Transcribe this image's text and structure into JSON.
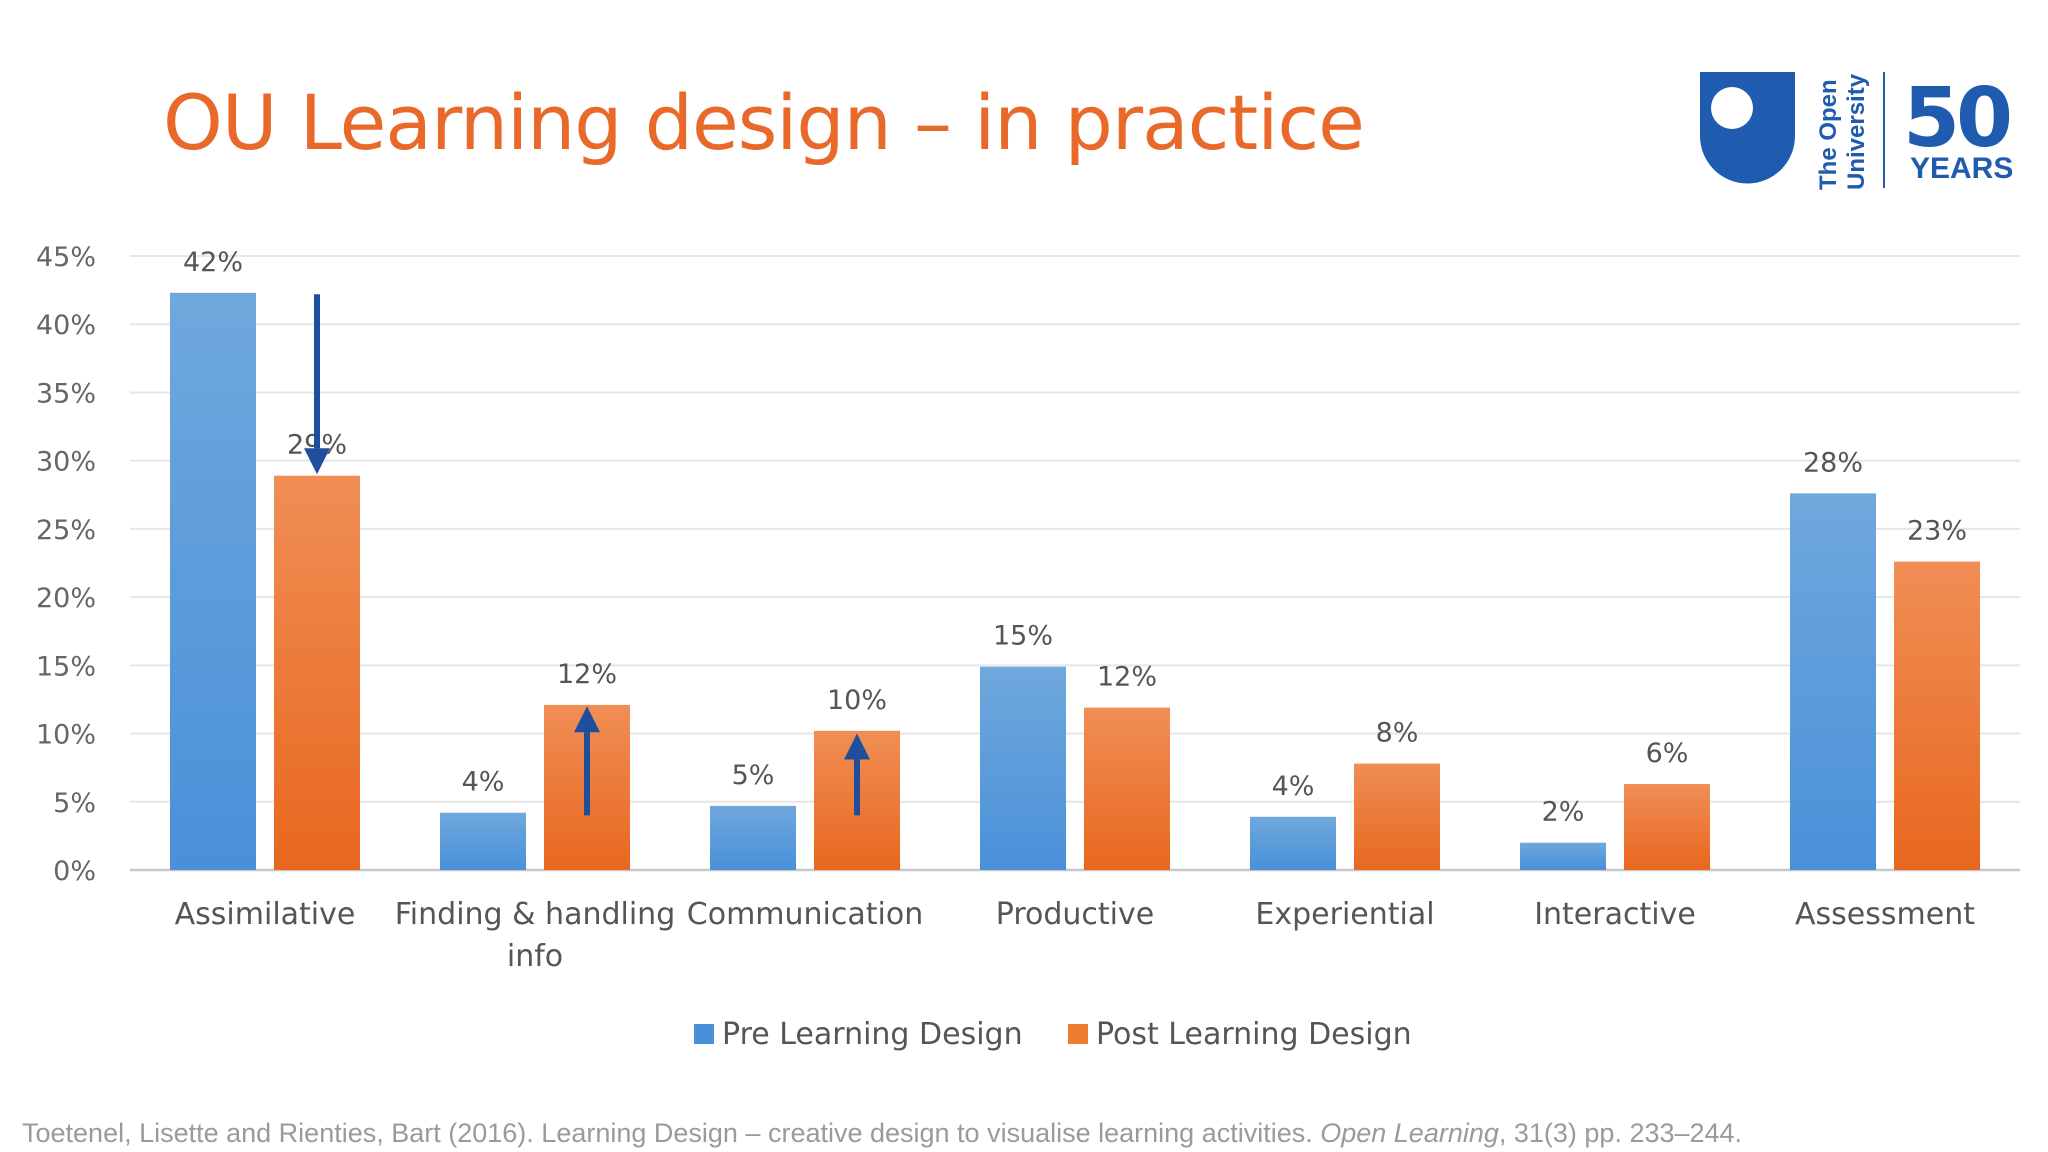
{
  "slide": {
    "title": "OU Learning design – in practice",
    "logo_text_line1": "The Open",
    "logo_text_line2": "University",
    "logo_50": "50",
    "logo_years": "YEARS",
    "citation_pre": "Toetenel, Lisette and Rienties, Bart (2016). Learning Design – creative design to visualise learning activities. ",
    "citation_journal": "Open Learning",
    "citation_post": ", 31(3) pp. 233–244."
  },
  "colors": {
    "title": "#E8692A",
    "pre": "#4A90D9",
    "post": "#ED7D31",
    "arrow": "#1F4E9C",
    "logo_blue": "#1F5BAE"
  },
  "chart_data": {
    "type": "bar",
    "categories": [
      "Assimilative",
      "Finding & handling info",
      "Communication",
      "Productive",
      "Experiential",
      "Interactive",
      "Assessment"
    ],
    "category_lines": [
      [
        "Assimilative"
      ],
      [
        "Finding & handling",
        "info"
      ],
      [
        "Communication"
      ],
      [
        "Productive"
      ],
      [
        "Experiential"
      ],
      [
        "Interactive"
      ],
      [
        "Assessment"
      ]
    ],
    "series": [
      {
        "name": "Pre Learning Design",
        "values": [
          42.3,
          4.2,
          4.7,
          14.9,
          3.9,
          2.0,
          27.6
        ],
        "labels": [
          "42%",
          "4%",
          "5%",
          "15%",
          "4%",
          "2%",
          "28%"
        ]
      },
      {
        "name": "Post Learning Design",
        "values": [
          28.9,
          12.1,
          10.2,
          11.9,
          7.8,
          6.3,
          22.6
        ],
        "labels": [
          "29%",
          "12%",
          "10%",
          "12%",
          "8%",
          "6%",
          "23%"
        ]
      }
    ],
    "ylim": [
      0,
      45
    ],
    "yticks": [
      "0%",
      "5%",
      "10%",
      "15%",
      "20%",
      "25%",
      "30%",
      "35%",
      "40%",
      "45%"
    ],
    "ytick_values": [
      0,
      5,
      10,
      15,
      20,
      25,
      30,
      35,
      40,
      45
    ],
    "grid": true,
    "legend_position": "bottom",
    "annotations": [
      {
        "type": "arrow",
        "category": 0,
        "series": 1,
        "direction": "down",
        "from": 42.2,
        "to": 29.0
      },
      {
        "type": "arrow",
        "category": 1,
        "series": 1,
        "direction": "up",
        "from": 4.0,
        "to": 12.0
      },
      {
        "type": "arrow",
        "category": 2,
        "series": 1,
        "direction": "up",
        "from": 4.0,
        "to": 10.0
      }
    ]
  }
}
